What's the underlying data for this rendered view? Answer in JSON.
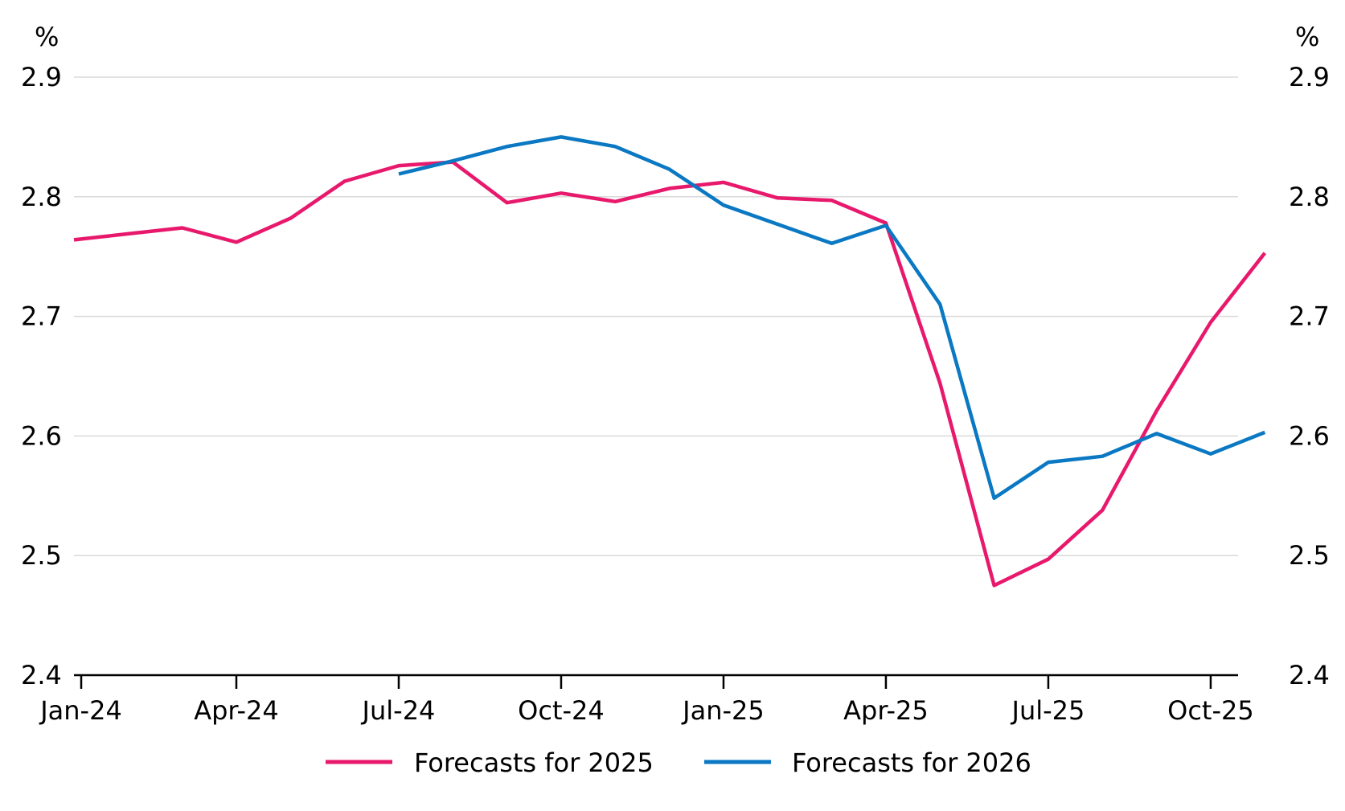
{
  "chart_data": {
    "type": "line",
    "title": "",
    "xlabel": "",
    "ylabel_left": "%",
    "ylabel_right": "%",
    "ylim": [
      2.4,
      2.9
    ],
    "yticks": [
      "2.4",
      "2.5",
      "2.6",
      "2.7",
      "2.8",
      "2.9"
    ],
    "grid": true,
    "legend_position": "bottom",
    "x": [
      "Jan-24",
      "Feb-24",
      "Mar-24",
      "Apr-24",
      "May-24",
      "Jun-24",
      "Jul-24",
      "Aug-24",
      "Sep-24",
      "Oct-24",
      "Nov-24",
      "Dec-24",
      "Jan-25",
      "Feb-25",
      "Mar-25",
      "Apr-25",
      "May-25",
      "Jun-25",
      "Jul-25",
      "Aug-25",
      "Sep-25",
      "Oct-25",
      "Nov-25"
    ],
    "xticks": [
      "Jan-24",
      "Apr-24",
      "Jul-24",
      "Oct-24",
      "Jan-25",
      "Apr-25",
      "Jul-25",
      "Oct-25"
    ],
    "series": [
      {
        "name": "Forecasts for 2025",
        "color": "#e8196c",
        "values": [
          2.764,
          2.769,
          2.774,
          2.762,
          2.782,
          2.813,
          2.826,
          2.829,
          2.795,
          2.803,
          2.796,
          2.807,
          2.812,
          2.799,
          2.797,
          2.778,
          2.644,
          2.475,
          2.497,
          2.538,
          2.621,
          2.695,
          2.753
        ]
      },
      {
        "name": "Forecasts for 2026",
        "color": "#0a78c2",
        "values": [
          null,
          null,
          null,
          null,
          null,
          null,
          2.819,
          2.83,
          2.842,
          2.85,
          2.842,
          2.823,
          2.793,
          2.777,
          2.761,
          2.776,
          2.71,
          2.548,
          2.578,
          2.583,
          2.602,
          2.585,
          2.603
        ]
      }
    ]
  }
}
